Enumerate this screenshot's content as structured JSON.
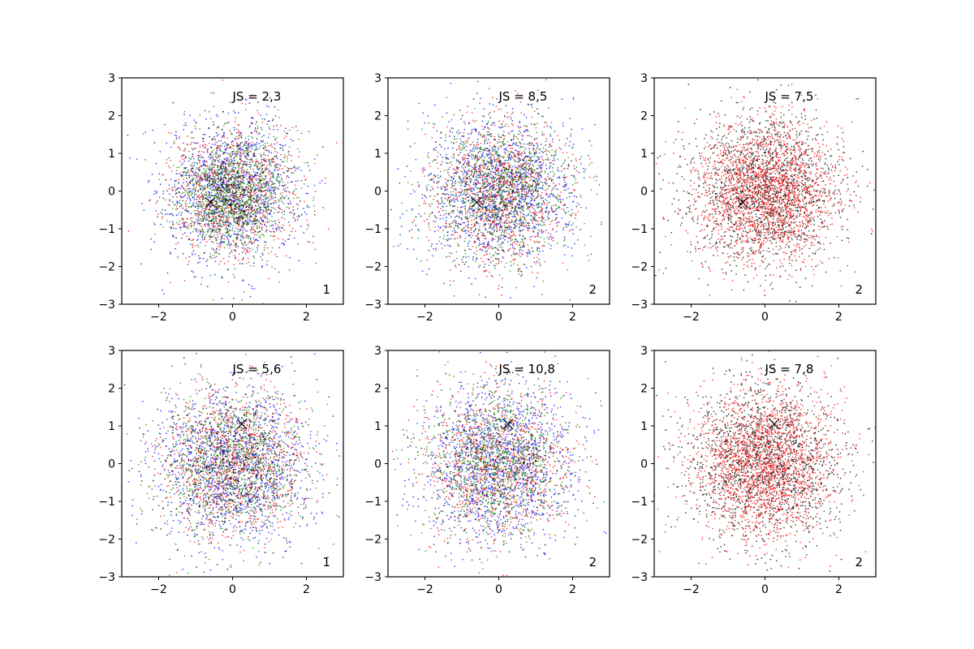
{
  "chart_data": [
    {
      "type": "scatter",
      "title": "",
      "annotation": "JS = 2,3",
      "corner_label": "1",
      "marker": {
        "x": -0.6,
        "y": -0.3
      },
      "xlim": [
        -3,
        3
      ],
      "ylim": [
        -3,
        3
      ],
      "xticks": [
        -2,
        0,
        2
      ],
      "yticks": [
        -3,
        -2,
        -1,
        0,
        1,
        2,
        3
      ],
      "grid": false,
      "series": [
        {
          "color": "#0000ff",
          "center": [
            0,
            0
          ],
          "spread": 0.95,
          "count": 1100
        },
        {
          "color": "#ff0000",
          "center": [
            0,
            0
          ],
          "spread": 0.9,
          "count": 900
        },
        {
          "color": "#008000",
          "center": [
            0,
            -0.1
          ],
          "spread": 0.75,
          "count": 1100
        },
        {
          "color": "#000000",
          "center": [
            0,
            0
          ],
          "spread": 0.8,
          "count": 500
        }
      ]
    },
    {
      "type": "scatter",
      "title": "",
      "annotation": "JS = 8,5",
      "corner_label": "2",
      "marker": {
        "x": -0.6,
        "y": -0.3
      },
      "xlim": [
        -3,
        3
      ],
      "ylim": [
        -3,
        3
      ],
      "xticks": [
        -2,
        0,
        2
      ],
      "yticks": [
        -3,
        -2,
        -1,
        0,
        1,
        2,
        3
      ],
      "grid": false,
      "series": [
        {
          "color": "#0000ff",
          "center": [
            0,
            0
          ],
          "spread": 1.0,
          "count": 1200
        },
        {
          "color": "#ff0000",
          "center": [
            0,
            0
          ],
          "spread": 0.95,
          "count": 1000
        },
        {
          "color": "#008000",
          "center": [
            0,
            0
          ],
          "spread": 0.95,
          "count": 1000
        },
        {
          "color": "#000000",
          "center": [
            0,
            0
          ],
          "spread": 0.9,
          "count": 400
        }
      ]
    },
    {
      "type": "scatter",
      "title": "",
      "annotation": "JS = 7,5",
      "corner_label": "2",
      "marker": {
        "x": -0.6,
        "y": -0.3
      },
      "xlim": [
        -3,
        3
      ],
      "ylim": [
        -3,
        3
      ],
      "xticks": [
        -2,
        0,
        2
      ],
      "yticks": [
        -3,
        -2,
        -1,
        0,
        1,
        2,
        3
      ],
      "grid": false,
      "series": [
        {
          "color": "#000000",
          "center": [
            0,
            0
          ],
          "spread": 1.05,
          "count": 1700
        },
        {
          "color": "#ff0000",
          "center": [
            0,
            0
          ],
          "spread": 0.95,
          "count": 1900
        }
      ]
    },
    {
      "type": "scatter",
      "title": "",
      "annotation": "JS = 5,6",
      "corner_label": "1",
      "marker": {
        "x": 0.25,
        "y": 1.05
      },
      "xlim": [
        -3,
        3
      ],
      "ylim": [
        -3,
        3
      ],
      "xticks": [
        -2,
        0,
        2
      ],
      "yticks": [
        -3,
        -2,
        -1,
        0,
        1,
        2,
        3
      ],
      "grid": false,
      "series": [
        {
          "color": "#0000ff",
          "center": [
            0,
            0
          ],
          "spread": 1.05,
          "count": 1200
        },
        {
          "color": "#ff0000",
          "center": [
            0,
            0
          ],
          "spread": 1.0,
          "count": 1000
        },
        {
          "color": "#008000",
          "center": [
            0,
            0
          ],
          "spread": 0.95,
          "count": 900
        },
        {
          "color": "#000000",
          "center": [
            0,
            0
          ],
          "spread": 1.0,
          "count": 600
        }
      ]
    },
    {
      "type": "scatter",
      "title": "",
      "annotation": "JS = 10,8",
      "corner_label": "2",
      "marker": {
        "x": 0.25,
        "y": 1.05
      },
      "xlim": [
        -3,
        3
      ],
      "ylim": [
        -3,
        3
      ],
      "xticks": [
        -2,
        0,
        2
      ],
      "yticks": [
        -3,
        -2,
        -1,
        0,
        1,
        2,
        3
      ],
      "grid": false,
      "series": [
        {
          "color": "#0000ff",
          "center": [
            0,
            0
          ],
          "spread": 1.05,
          "count": 1300
        },
        {
          "color": "#ff0000",
          "center": [
            0,
            0
          ],
          "spread": 1.0,
          "count": 1000
        },
        {
          "color": "#008000",
          "center": [
            0,
            0
          ],
          "spread": 0.95,
          "count": 1000
        },
        {
          "color": "#000000",
          "center": [
            0,
            0
          ],
          "spread": 1.0,
          "count": 300
        }
      ]
    },
    {
      "type": "scatter",
      "title": "",
      "annotation": "JS = 7,8",
      "corner_label": "2",
      "marker": {
        "x": 0.25,
        "y": 1.05
      },
      "xlim": [
        -3,
        3
      ],
      "ylim": [
        -3,
        3
      ],
      "xticks": [
        -2,
        0,
        2
      ],
      "yticks": [
        -3,
        -2,
        -1,
        0,
        1,
        2,
        3
      ],
      "grid": false,
      "series": [
        {
          "color": "#000000",
          "center": [
            0,
            0
          ],
          "spread": 1.05,
          "count": 1700
        },
        {
          "color": "#ff0000",
          "center": [
            0,
            0
          ],
          "spread": 0.95,
          "count": 1900
        }
      ]
    }
  ]
}
